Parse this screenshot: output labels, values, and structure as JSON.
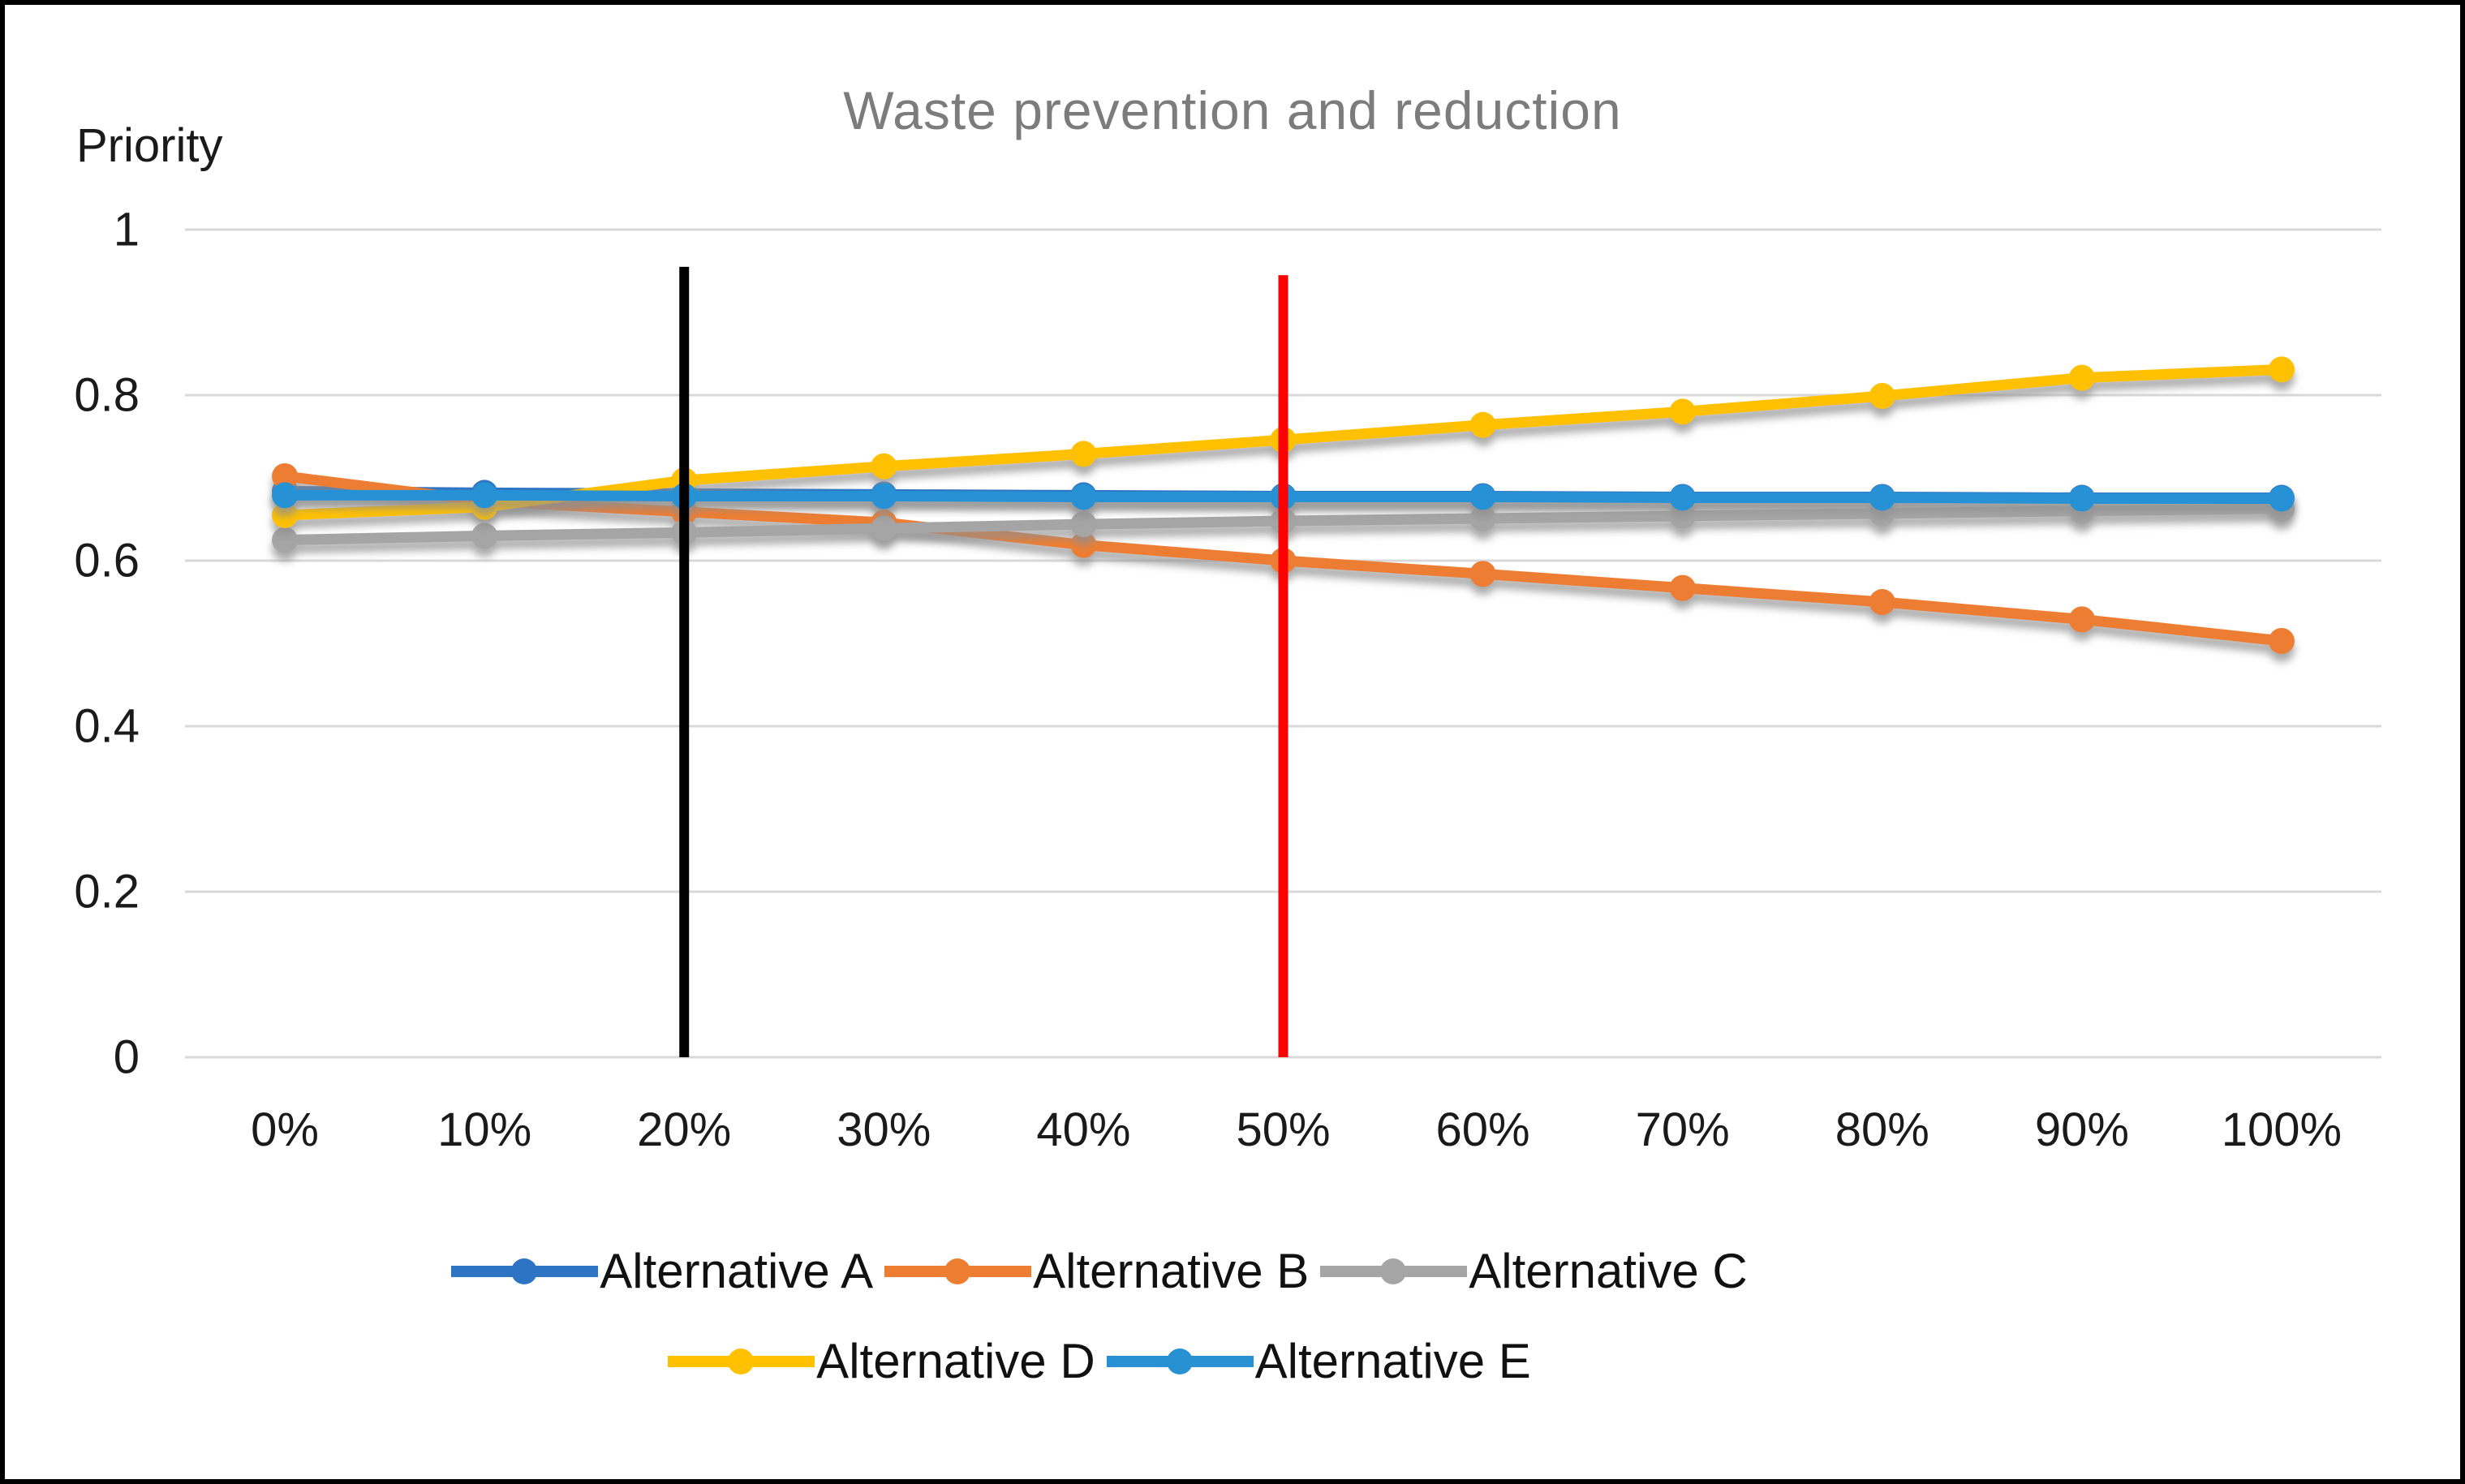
{
  "title": "Waste prevention and reduction",
  "y_axis": {
    "title": "Priority",
    "tick_labels": [
      "1",
      "0.8",
      "0.6",
      "0.4",
      "0.2",
      "0"
    ],
    "tick_values": [
      1,
      0.8,
      0.6,
      0.4,
      0.2,
      0
    ]
  },
  "x_axis": {
    "tick_labels": [
      "0%",
      "10%",
      "20%",
      "30%",
      "40%",
      "50%",
      "60%",
      "70%",
      "80%",
      "90%",
      "100%"
    ]
  },
  "chart_data": {
    "type": "line",
    "title": "Waste prevention and reduction",
    "ylabel": "Priority",
    "ylim": [
      0,
      1
    ],
    "grid": true,
    "legend_position": "bottom",
    "categories": [
      "0%",
      "10%",
      "20%",
      "30%",
      "40%",
      "50%",
      "60%",
      "70%",
      "80%",
      "90%",
      "100%"
    ],
    "series": [
      {
        "name": "Alternative A",
        "color": "#2e74c4",
        "values": [
          0.684,
          0.682,
          0.681,
          0.68,
          0.679,
          0.678,
          0.678,
          0.677,
          0.677,
          0.676,
          0.676
        ]
      },
      {
        "name": "Alternative B",
        "color": "#ed7d31",
        "values": [
          0.702,
          0.672,
          0.659,
          0.646,
          0.619,
          0.6,
          0.584,
          0.567,
          0.55,
          0.529,
          0.503
        ]
      },
      {
        "name": "Alternative C",
        "color": "#a5a5a5",
        "values": [
          0.625,
          0.63,
          0.634,
          0.639,
          0.644,
          0.648,
          0.651,
          0.654,
          0.657,
          0.66,
          0.663
        ]
      },
      {
        "name": "Alternative D",
        "color": "#ffc000",
        "values": [
          0.655,
          0.665,
          0.697,
          0.714,
          0.729,
          0.746,
          0.764,
          0.78,
          0.799,
          0.821,
          0.831
        ]
      },
      {
        "name": "Alternative E",
        "color": "#2791d4",
        "values": [
          0.679,
          0.679,
          0.678,
          0.678,
          0.677,
          0.677,
          0.677,
          0.676,
          0.676,
          0.675,
          0.675
        ]
      }
    ],
    "vertical_reference_lines": [
      {
        "name": "black-marker-line",
        "at_category": "20%",
        "color": "#000000",
        "top_value": 0.955
      },
      {
        "name": "red-marker-line",
        "at_category": "50%",
        "color": "#fe0000",
        "top_value": 0.945
      }
    ],
    "legend_rows": [
      [
        "Alternative A",
        "Alternative B",
        "Alternative C"
      ],
      [
        "Alternative D",
        "Alternative E"
      ]
    ]
  },
  "colors": {
    "title_text": "#7c7c7c",
    "axis_text": "#1a1a1a",
    "gridline": "#d9d9d9",
    "background": "#ffffff",
    "frame": "#000000"
  }
}
